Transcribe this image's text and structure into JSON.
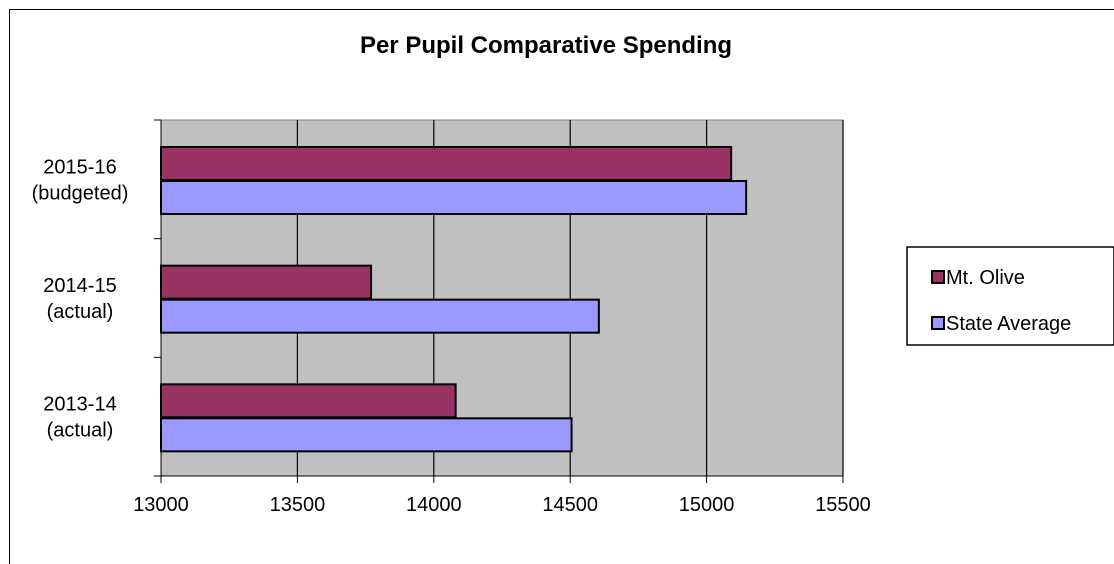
{
  "chart_data": {
    "type": "bar",
    "orientation": "horizontal",
    "title": "Per Pupil Comparative Spending",
    "categories": [
      [
        "2015-16",
        "(budgeted)"
      ],
      [
        "2014-15",
        "(actual)"
      ],
      [
        "2013-14",
        "(actual)"
      ]
    ],
    "series": [
      {
        "name": "Mt. Olive",
        "color": "#993366",
        "values": [
          15090,
          13770,
          14080
        ]
      },
      {
        "name": "State Average",
        "color": "#9999ff",
        "values": [
          15145,
          14605,
          14505
        ]
      }
    ],
    "xlim": [
      13000,
      15500
    ],
    "xticks": [
      13000,
      13500,
      14000,
      14500,
      15000,
      15500
    ],
    "plot_background": "#c0c0c0",
    "grid": true,
    "legend_position": "right"
  }
}
